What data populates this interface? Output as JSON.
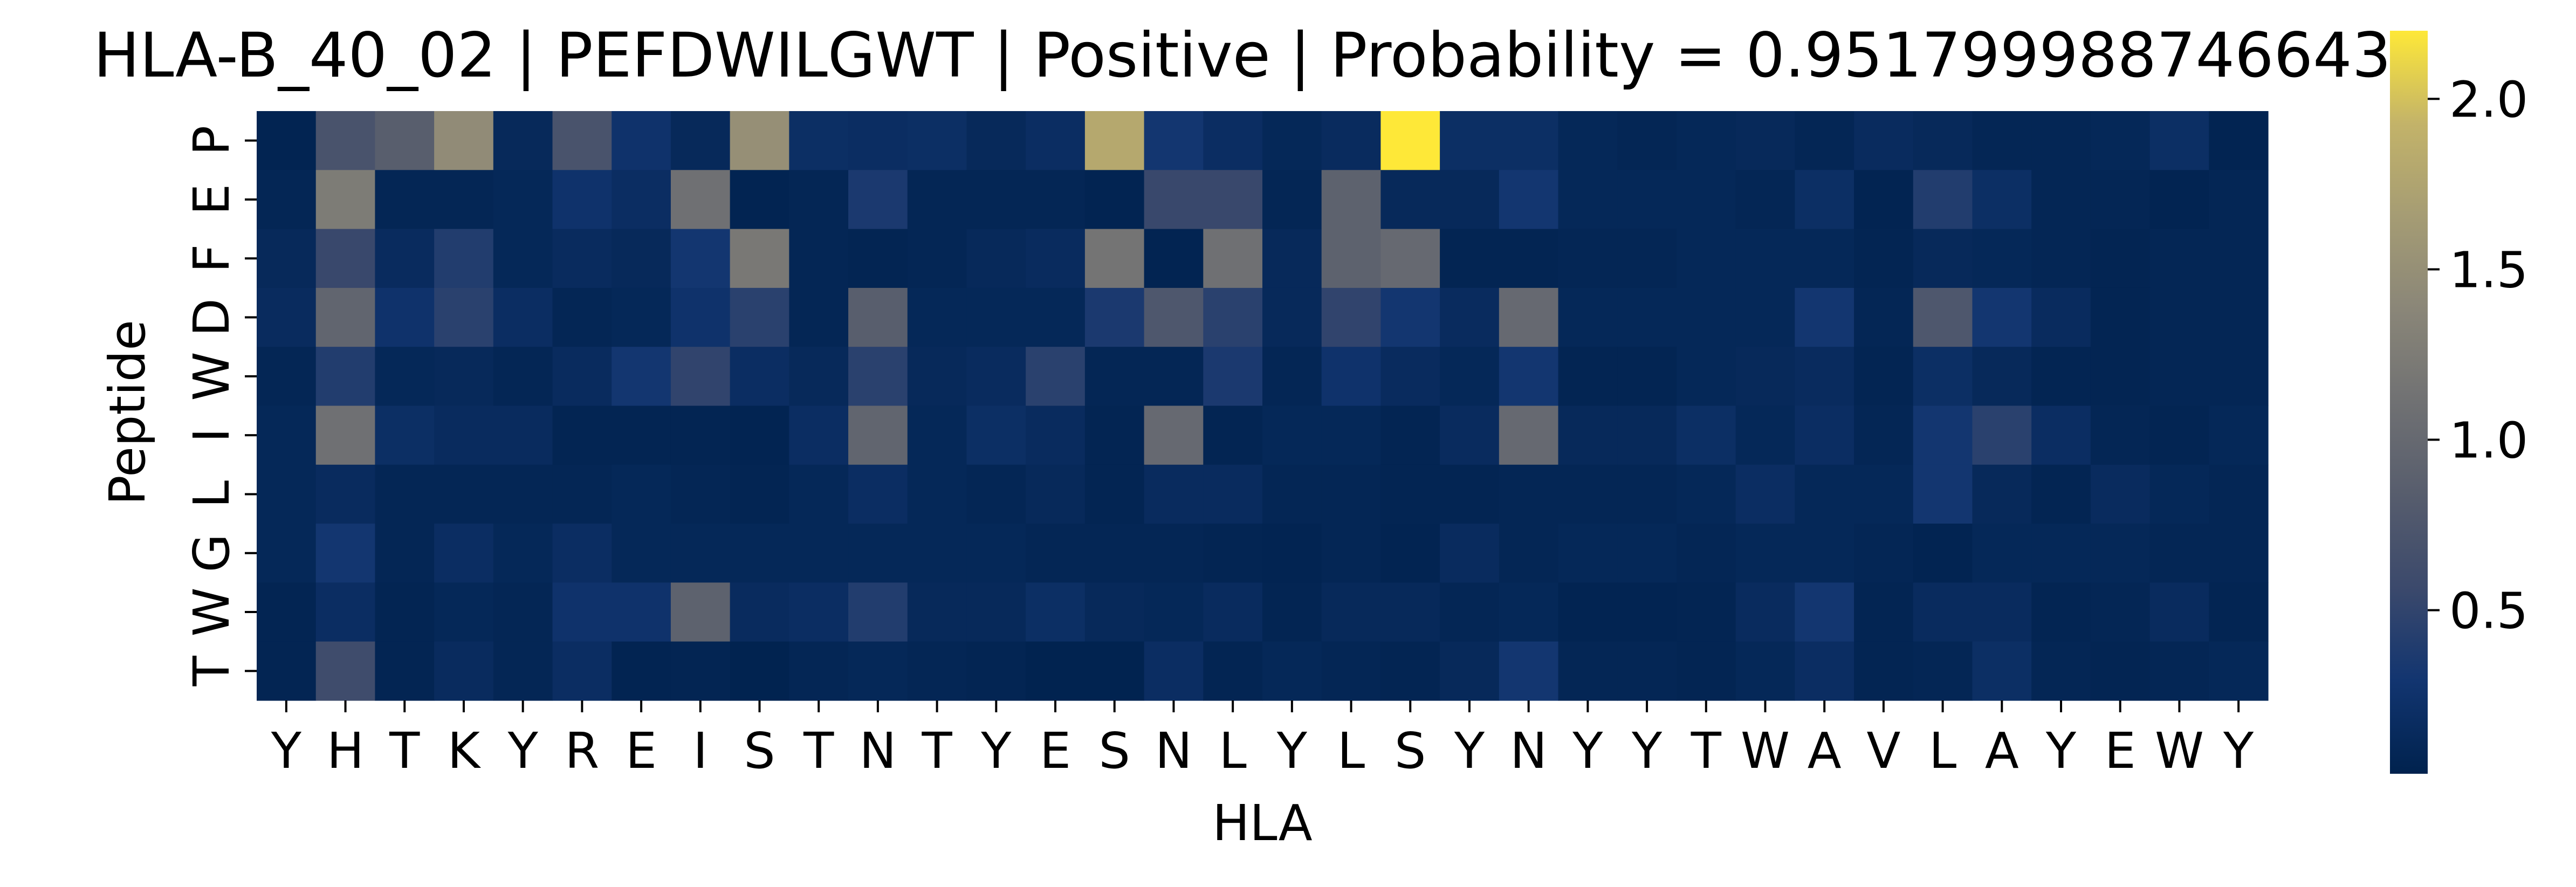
{
  "chart_data": {
    "type": "heatmap",
    "title": "HLA-B_40_02 | PEFDWILGWT | Positive | Probability = 0.9517999887466431",
    "xlabel": "HLA",
    "ylabel": "Peptide",
    "x_ticks": [
      "Y",
      "H",
      "T",
      "K",
      "Y",
      "R",
      "E",
      "I",
      "S",
      "T",
      "N",
      "T",
      "Y",
      "E",
      "S",
      "N",
      "L",
      "Y",
      "L",
      "S",
      "Y",
      "N",
      "Y",
      "Y",
      "T",
      "W",
      "A",
      "V",
      "L",
      "A",
      "Y",
      "E",
      "W",
      "Y"
    ],
    "y_ticks": [
      "P",
      "E",
      "F",
      "D",
      "W",
      "I",
      "L",
      "G",
      "W",
      "T"
    ],
    "colorbar": {
      "colormap": "cividis",
      "vmin": 0.02,
      "vmax": 2.2,
      "ticks": [
        0.5,
        1.0,
        1.5,
        2.0
      ],
      "tick_labels": [
        "0.5",
        "1.0",
        "1.5",
        "2.0"
      ]
    },
    "values": [
      [
        0.05,
        0.7,
        0.85,
        1.45,
        0.12,
        0.7,
        0.25,
        0.12,
        1.5,
        0.2,
        0.18,
        0.2,
        0.12,
        0.18,
        1.8,
        0.3,
        0.18,
        0.1,
        0.15,
        2.2,
        0.2,
        0.2,
        0.1,
        0.08,
        0.1,
        0.12,
        0.08,
        0.15,
        0.12,
        0.08,
        0.08,
        0.1,
        0.2,
        0.05
      ],
      [
        0.08,
        1.25,
        0.08,
        0.08,
        0.1,
        0.25,
        0.18,
        1.1,
        0.05,
        0.08,
        0.35,
        0.08,
        0.08,
        0.08,
        0.05,
        0.55,
        0.55,
        0.08,
        0.9,
        0.12,
        0.12,
        0.3,
        0.1,
        0.1,
        0.1,
        0.08,
        0.2,
        0.05,
        0.4,
        0.2,
        0.08,
        0.08,
        0.05,
        0.08
      ],
      [
        0.12,
        0.55,
        0.15,
        0.4,
        0.1,
        0.15,
        0.12,
        0.3,
        1.2,
        0.08,
        0.06,
        0.08,
        0.12,
        0.15,
        1.15,
        0.05,
        1.1,
        0.12,
        0.9,
        1.0,
        0.06,
        0.06,
        0.08,
        0.08,
        0.1,
        0.1,
        0.1,
        0.06,
        0.12,
        0.1,
        0.08,
        0.06,
        0.08,
        0.08
      ],
      [
        0.15,
        0.95,
        0.25,
        0.45,
        0.18,
        0.08,
        0.1,
        0.25,
        0.45,
        0.08,
        0.85,
        0.1,
        0.1,
        0.1,
        0.35,
        0.75,
        0.45,
        0.12,
        0.5,
        0.3,
        0.15,
        1.0,
        0.1,
        0.1,
        0.1,
        0.1,
        0.3,
        0.08,
        0.75,
        0.3,
        0.15,
        0.06,
        0.08,
        0.08
      ],
      [
        0.08,
        0.4,
        0.1,
        0.12,
        0.08,
        0.15,
        0.3,
        0.5,
        0.18,
        0.12,
        0.45,
        0.12,
        0.15,
        0.45,
        0.08,
        0.08,
        0.35,
        0.08,
        0.25,
        0.15,
        0.1,
        0.3,
        0.06,
        0.06,
        0.1,
        0.12,
        0.15,
        0.06,
        0.2,
        0.12,
        0.06,
        0.06,
        0.08,
        0.08
      ],
      [
        0.1,
        1.1,
        0.2,
        0.15,
        0.15,
        0.06,
        0.06,
        0.06,
        0.05,
        0.18,
        0.95,
        0.1,
        0.2,
        0.15,
        0.06,
        1.0,
        0.06,
        0.1,
        0.1,
        0.06,
        0.15,
        1.0,
        0.12,
        0.12,
        0.2,
        0.1,
        0.18,
        0.08,
        0.3,
        0.45,
        0.18,
        0.08,
        0.06,
        0.1
      ],
      [
        0.1,
        0.15,
        0.08,
        0.08,
        0.08,
        0.08,
        0.1,
        0.08,
        0.06,
        0.1,
        0.18,
        0.1,
        0.08,
        0.12,
        0.06,
        0.15,
        0.15,
        0.08,
        0.08,
        0.06,
        0.06,
        0.08,
        0.08,
        0.08,
        0.1,
        0.18,
        0.1,
        0.1,
        0.3,
        0.12,
        0.06,
        0.15,
        0.1,
        0.08
      ],
      [
        0.1,
        0.3,
        0.08,
        0.18,
        0.1,
        0.18,
        0.1,
        0.1,
        0.1,
        0.1,
        0.1,
        0.1,
        0.1,
        0.08,
        0.08,
        0.08,
        0.06,
        0.05,
        0.08,
        0.05,
        0.15,
        0.08,
        0.1,
        0.1,
        0.08,
        0.1,
        0.1,
        0.08,
        0.05,
        0.1,
        0.1,
        0.1,
        0.08,
        0.08
      ],
      [
        0.06,
        0.18,
        0.06,
        0.1,
        0.08,
        0.25,
        0.25,
        0.9,
        0.15,
        0.18,
        0.4,
        0.12,
        0.12,
        0.2,
        0.12,
        0.1,
        0.15,
        0.06,
        0.12,
        0.12,
        0.08,
        0.1,
        0.05,
        0.05,
        0.06,
        0.15,
        0.3,
        0.06,
        0.15,
        0.15,
        0.06,
        0.08,
        0.15,
        0.06
      ],
      [
        0.06,
        0.6,
        0.06,
        0.15,
        0.08,
        0.18,
        0.05,
        0.06,
        0.04,
        0.08,
        0.1,
        0.08,
        0.06,
        0.04,
        0.04,
        0.18,
        0.06,
        0.1,
        0.08,
        0.06,
        0.12,
        0.3,
        0.08,
        0.08,
        0.06,
        0.1,
        0.18,
        0.06,
        0.08,
        0.2,
        0.08,
        0.06,
        0.08,
        0.1
      ]
    ]
  }
}
